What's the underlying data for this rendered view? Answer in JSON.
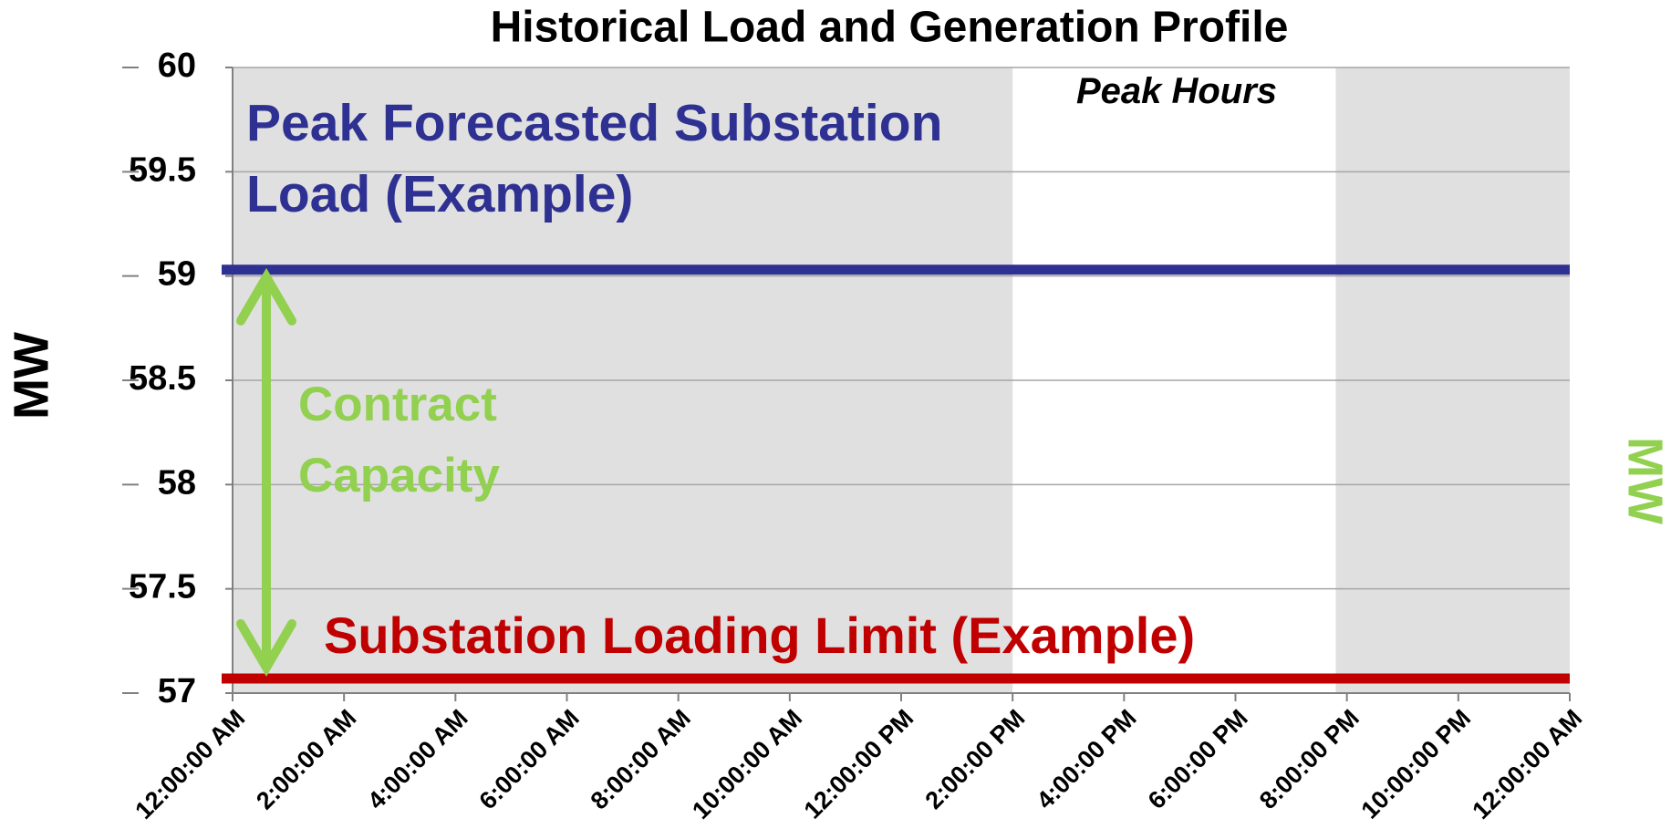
{
  "chart_data": {
    "type": "line",
    "title": "Historical Load and Generation Profile",
    "ylabel": "MW",
    "y2label": "MW",
    "y2label_color": "#92d050",
    "xlim": [
      0,
      24
    ],
    "xticks": [
      {
        "value": 0,
        "label": "12:00:00 AM"
      },
      {
        "value": 2,
        "label": "2:00:00 AM"
      },
      {
        "value": 4,
        "label": "4:00:00 AM"
      },
      {
        "value": 6,
        "label": "6:00:00 AM"
      },
      {
        "value": 8,
        "label": "8:00:00 AM"
      },
      {
        "value": 10,
        "label": "10:00:00 AM"
      },
      {
        "value": 12,
        "label": "12:00:00 PM"
      },
      {
        "value": 14,
        "label": "2:00:00 PM"
      },
      {
        "value": 16,
        "label": "4:00:00 PM"
      },
      {
        "value": 18,
        "label": "6:00:00 PM"
      },
      {
        "value": 20,
        "label": "8:00:00 PM"
      },
      {
        "value": 22,
        "label": "10:00:00 PM"
      },
      {
        "value": 24,
        "label": "12:00:00 AM"
      }
    ],
    "ylim": [
      57,
      60
    ],
    "yticks": [
      57,
      57.5,
      58,
      58.5,
      59,
      59.5,
      60
    ],
    "grid": true,
    "shaded_regions": [
      {
        "x": [
          0,
          14
        ],
        "color": "#e0e0e0"
      },
      {
        "x": [
          19.8,
          24
        ],
        "color": "#e0e0e0"
      }
    ],
    "peak_label": "Peak Hours",
    "series": [
      {
        "name": "Peak Forecasted Substation Load (Example)",
        "color": "#2e3192",
        "x": [
          0,
          24
        ],
        "values": [
          59.03,
          59.03
        ]
      },
      {
        "name": "Substation Loading Limit (Example)",
        "color": "#c00000",
        "x": [
          0,
          24
        ],
        "values": [
          57.07,
          57.07
        ]
      }
    ],
    "range_annotation": {
      "text": "Contract Capacity",
      "color": "#92d050"
    }
  }
}
